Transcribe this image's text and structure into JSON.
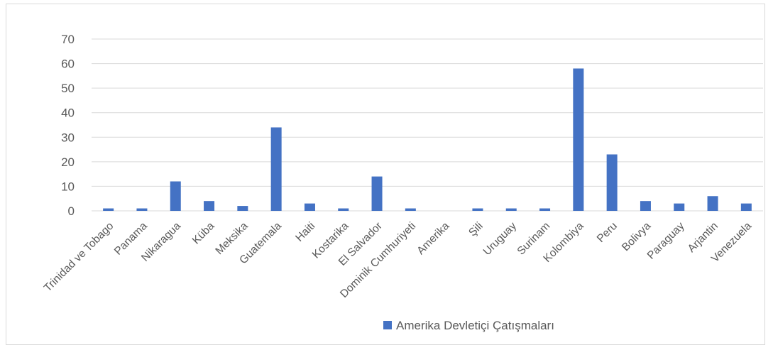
{
  "chart_data": {
    "type": "bar",
    "categories": [
      "Trinidad ve Tobago",
      "Panama",
      "Nikaragua",
      "Küba",
      "Meksika",
      "Guatemala",
      "Haiti",
      "Kostarika",
      "El Salvador",
      "Dominik Cumhuriyeti",
      "Amerika",
      "Şili",
      "Uruguay",
      "Surinam",
      "Kolombiya",
      "Peru",
      "Bolivya",
      "Paraguay",
      "Arjantin",
      "Venezuela"
    ],
    "series": [
      {
        "name": "Amerika Devletiçi Çatışmaları",
        "values": [
          1,
          1,
          12,
          4,
          2,
          34,
          3,
          1,
          14,
          1,
          0,
          1,
          1,
          1,
          58,
          23,
          4,
          3,
          6,
          3
        ]
      }
    ],
    "ylim": [
      0,
      70
    ],
    "yticks": [
      0,
      10,
      20,
      30,
      40,
      50,
      60,
      70
    ],
    "grid": true,
    "legend_position": "bottom",
    "colors": {
      "bar": "#4472c4",
      "grid": "#d9d9d9",
      "text": "#595959"
    }
  }
}
